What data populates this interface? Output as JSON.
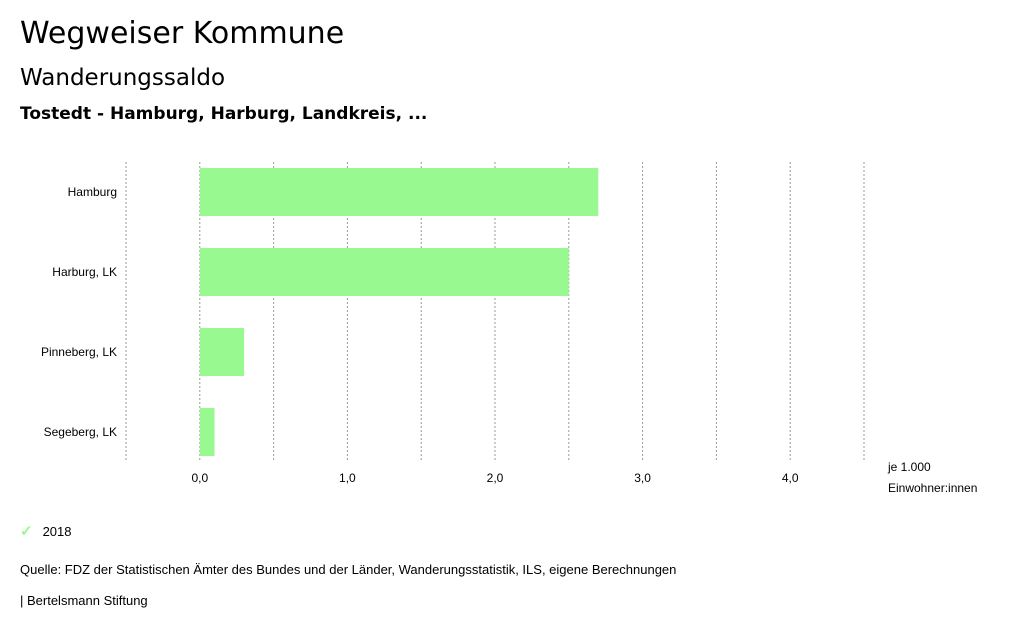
{
  "header": {
    "app_title": "Wegweiser Kommune",
    "subtitle": "Wanderungssaldo",
    "region": "Tostedt - Hamburg, Harburg, Landkreis, ..."
  },
  "chart_data": {
    "type": "bar",
    "orientation": "horizontal",
    "categories": [
      "Hamburg",
      "Harburg, LK",
      "Pinneberg, LK",
      "Segeberg, LK"
    ],
    "series": [
      {
        "name": "2018",
        "values": [
          2.7,
          2.5,
          0.3,
          0.1
        ],
        "color": "#98f990"
      }
    ],
    "xlim": [
      -0.5,
      4.5
    ],
    "xticks": [
      "0,0",
      "1,0",
      "2,0",
      "3,0",
      "4,0"
    ],
    "unit_label_line1": "je 1.000",
    "unit_label_line2": "Einwohner:innen",
    "grid": true,
    "legend_position": "bottom-left"
  },
  "legend": {
    "icon": "check-icon",
    "label": "2018"
  },
  "footer": {
    "source": "Quelle: FDZ der Statistischen Ämter des Bundes und der Länder, Wanderungsstatistik, ILS, eigene Berechnungen",
    "org": "| Bertelsmann Stiftung"
  }
}
